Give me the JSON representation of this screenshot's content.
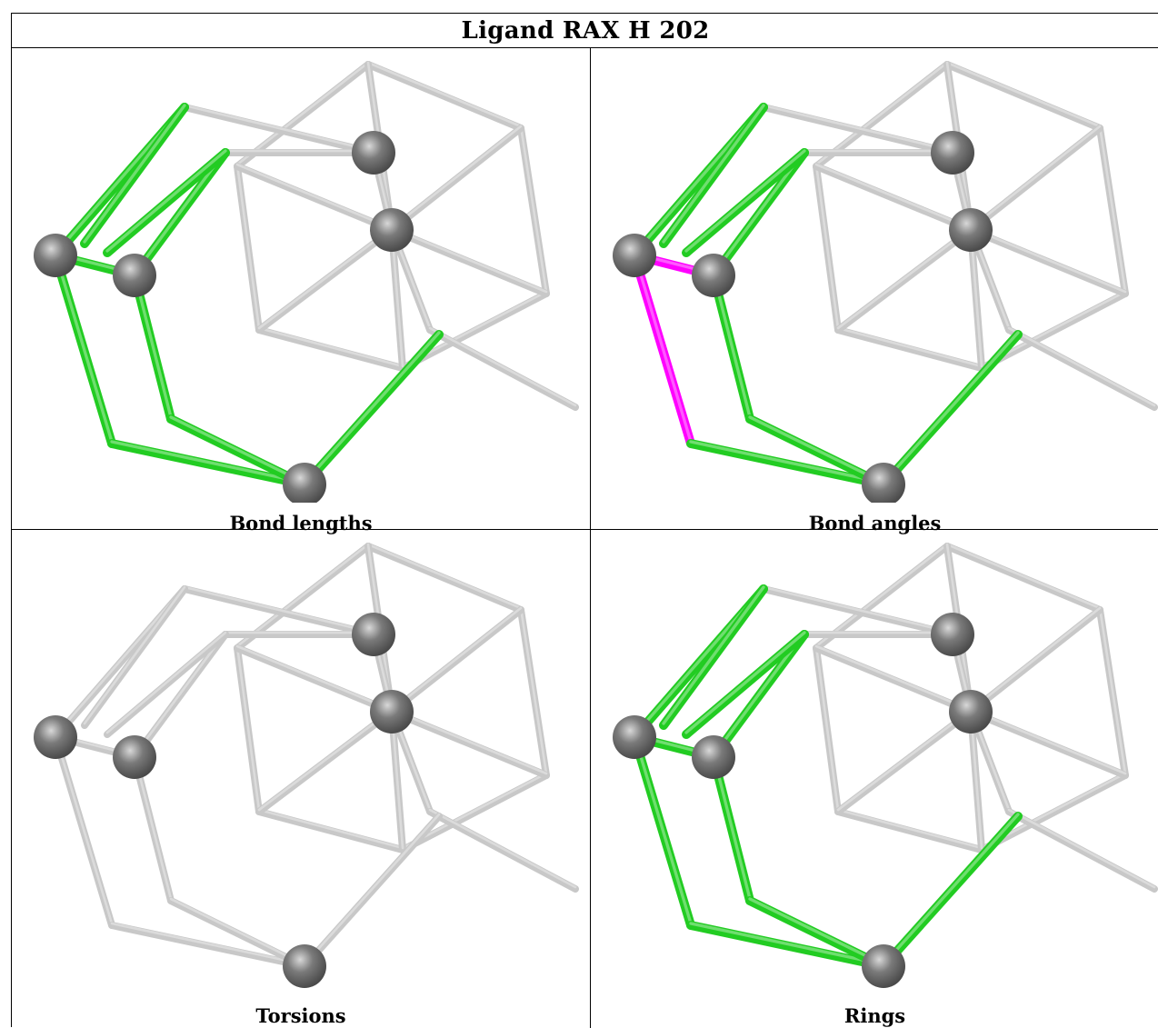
{
  "title": "Ligand RAX H 202",
  "panels": [
    {
      "caption": "Bond lengths",
      "highlight": "green"
    },
    {
      "caption": "Bond angles",
      "highlight": "green",
      "outlier_color": "#ff00ff"
    },
    {
      "caption": "Torsions",
      "highlight": "none"
    },
    {
      "caption": "Rings",
      "highlight": "green"
    }
  ],
  "colors": {
    "bond_default": "#c8c8c8",
    "bond_highlight": "#22cc22",
    "bond_outlier": "#ff00ff",
    "atom": "#7a7a7a"
  }
}
